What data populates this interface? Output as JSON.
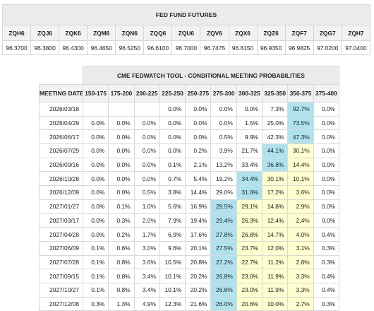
{
  "futures": {
    "title": "FED FUND FUTURES",
    "contracts": [
      "ZQH6",
      "ZQJ6",
      "ZQK6",
      "ZQM6",
      "ZQN6",
      "ZQQ6",
      "ZQU6",
      "ZQV6",
      "ZQX6",
      "ZQZ6",
      "ZQF7",
      "ZQG7",
      "ZQH7"
    ],
    "prices": [
      "96.3700",
      "96.3800",
      "96.4300",
      "96.4650",
      "96.5250",
      "96.6100",
      "96.7000",
      "96.7475",
      "96.8150",
      "96.9350",
      "96.9825",
      "97.0200",
      "97.0400"
    ]
  },
  "probabilities": {
    "title": "CME FEDWATCH TOOL - CONDITIONAL MEETING PROBABILITIES",
    "date_header": "MEETING DATE",
    "ranges": [
      "150-175",
      "175-200",
      "200-225",
      "225-250",
      "250-275",
      "275-300",
      "300-325",
      "325-350",
      "350-375",
      "375-400"
    ],
    "rows": [
      {
        "date": "2026/03/18",
        "values": [
          "",
          "",
          "",
          "0.0%",
          "0.0%",
          "0.0%",
          "0.0%",
          "7.3%",
          "92.7%",
          "0.0%"
        ]
      },
      {
        "date": "2026/04/29",
        "values": [
          "0.0%",
          "0.0%",
          "0.0%",
          "0.0%",
          "0.0%",
          "0.0%",
          "1.5%",
          "25.0%",
          "73.5%",
          "0.0%"
        ]
      },
      {
        "date": "2026/06/17",
        "values": [
          "0.0%",
          "0.0%",
          "0.0%",
          "0.0%",
          "0.0%",
          "0.5%",
          "9.9%",
          "42.3%",
          "47.3%",
          "0.0%"
        ]
      },
      {
        "date": "2026/07/29",
        "values": [
          "0.0%",
          "0.0%",
          "0.0%",
          "0.0%",
          "0.2%",
          "3.9%",
          "21.7%",
          "44.1%",
          "30.1%",
          "0.0%"
        ]
      },
      {
        "date": "2026/09/16",
        "values": [
          "0.0%",
          "0.0%",
          "0.0%",
          "0.1%",
          "2.1%",
          "13.2%",
          "33.4%",
          "36.8%",
          "14.4%",
          "0.0%"
        ]
      },
      {
        "date": "2026/10/28",
        "values": [
          "0.0%",
          "0.0%",
          "0.0%",
          "0.7%",
          "5.4%",
          "19.2%",
          "34.4%",
          "30.1%",
          "10.1%",
          "0.0%"
        ]
      },
      {
        "date": "2026/12/09",
        "values": [
          "0.0%",
          "0.0%",
          "0.5%",
          "3.8%",
          "14.4%",
          "29.0%",
          "31.6%",
          "17.2%",
          "3.6%",
          "0.0%"
        ]
      },
      {
        "date": "2027/01/27",
        "values": [
          "0.0%",
          "0.1%",
          "1.0%",
          "5.6%",
          "16.9%",
          "29.5%",
          "29.1%",
          "14.8%",
          "2.9%",
          "0.0%"
        ]
      },
      {
        "date": "2027/03/17",
        "values": [
          "0.0%",
          "0.3%",
          "2.0%",
          "7.9%",
          "19.4%",
          "29.4%",
          "26.3%",
          "12.4%",
          "2.4%",
          "0.0%"
        ]
      },
      {
        "date": "2027/04/28",
        "values": [
          "0.0%",
          "0.2%",
          "1.7%",
          "6.9%",
          "17.6%",
          "27.8%",
          "26.8%",
          "14.7%",
          "4.0%",
          "0.4%"
        ]
      },
      {
        "date": "2027/06/09",
        "values": [
          "0.1%",
          "0.6%",
          "3.0%",
          "9.6%",
          "20.1%",
          "27.5%",
          "23.7%",
          "12.0%",
          "3.1%",
          "0.3%"
        ]
      },
      {
        "date": "2027/07/28",
        "values": [
          "0.1%",
          "0.8%",
          "3.6%",
          "10.5%",
          "20.8%",
          "27.2%",
          "22.7%",
          "11.2%",
          "2.8%",
          "0.3%"
        ]
      },
      {
        "date": "2027/09/15",
        "values": [
          "0.1%",
          "0.8%",
          "3.4%",
          "10.1%",
          "20.2%",
          "26.8%",
          "23.0%",
          "11.9%",
          "3.3%",
          "0.4%"
        ]
      },
      {
        "date": "2027/10/27",
        "values": [
          "0.1%",
          "0.8%",
          "3.4%",
          "10.1%",
          "20.2%",
          "26.8%",
          "23.0%",
          "11.9%",
          "3.3%",
          "0.4%"
        ]
      },
      {
        "date": "2027/12/08",
        "values": [
          "0.3%",
          "1.3%",
          "4.9%",
          "12.3%",
          "21.6%",
          "26.0%",
          "20.6%",
          "10.0%",
          "2.7%",
          "0.3%"
        ]
      }
    ],
    "highlights": [
      {
        "row": 0,
        "col": 8,
        "color": "#aee3ed"
      },
      {
        "row": 1,
        "col": 8,
        "color": "#aee3ed"
      },
      {
        "row": 2,
        "col": 8,
        "color": "#aee3ed"
      },
      {
        "row": 3,
        "col": 7,
        "color": "#aee3ed"
      },
      {
        "row": 3,
        "col": 8,
        "color": "#fefecf"
      },
      {
        "row": 4,
        "col": 7,
        "color": "#aee3ed"
      },
      {
        "row": 4,
        "col": 8,
        "color": "#fefecf"
      },
      {
        "row": 5,
        "col": 6,
        "color": "#aee3ed"
      },
      {
        "row": 5,
        "col": 7,
        "color": "#fefecf"
      },
      {
        "row": 5,
        "col": 8,
        "color": "#fefecf"
      },
      {
        "row": 6,
        "col": 6,
        "color": "#aee3ed"
      },
      {
        "row": 6,
        "col": 7,
        "color": "#fefecf"
      },
      {
        "row": 6,
        "col": 8,
        "color": "#fefecf"
      },
      {
        "row": 7,
        "col": 5,
        "color": "#aee3ed"
      },
      {
        "row": 7,
        "col": 6,
        "color": "#fefecf"
      },
      {
        "row": 7,
        "col": 7,
        "color": "#fefecf"
      },
      {
        "row": 7,
        "col": 8,
        "color": "#fefecf"
      },
      {
        "row": 8,
        "col": 5,
        "color": "#aee3ed"
      },
      {
        "row": 8,
        "col": 6,
        "color": "#fefecf"
      },
      {
        "row": 8,
        "col": 7,
        "color": "#fefecf"
      },
      {
        "row": 8,
        "col": 8,
        "color": "#fefecf"
      },
      {
        "row": 9,
        "col": 5,
        "color": "#aee3ed"
      },
      {
        "row": 9,
        "col": 6,
        "color": "#fefecf"
      },
      {
        "row": 9,
        "col": 7,
        "color": "#fefecf"
      },
      {
        "row": 9,
        "col": 8,
        "color": "#fefecf"
      },
      {
        "row": 10,
        "col": 5,
        "color": "#aee3ed"
      },
      {
        "row": 10,
        "col": 6,
        "color": "#fefecf"
      },
      {
        "row": 10,
        "col": 7,
        "color": "#fefecf"
      },
      {
        "row": 10,
        "col": 8,
        "color": "#fefecf"
      },
      {
        "row": 11,
        "col": 5,
        "color": "#aee3ed"
      },
      {
        "row": 11,
        "col": 6,
        "color": "#fefecf"
      },
      {
        "row": 11,
        "col": 7,
        "color": "#fefecf"
      },
      {
        "row": 11,
        "col": 8,
        "color": "#fefecf"
      },
      {
        "row": 12,
        "col": 5,
        "color": "#aee3ed"
      },
      {
        "row": 12,
        "col": 6,
        "color": "#fefecf"
      },
      {
        "row": 12,
        "col": 7,
        "color": "#fefecf"
      },
      {
        "row": 12,
        "col": 8,
        "color": "#fefecf"
      },
      {
        "row": 13,
        "col": 5,
        "color": "#aee3ed"
      },
      {
        "row": 13,
        "col": 6,
        "color": "#fefecf"
      },
      {
        "row": 13,
        "col": 7,
        "color": "#fefecf"
      },
      {
        "row": 13,
        "col": 8,
        "color": "#fefecf"
      },
      {
        "row": 14,
        "col": 5,
        "color": "#aee3ed"
      },
      {
        "row": 14,
        "col": 6,
        "color": "#fefecf"
      },
      {
        "row": 14,
        "col": 7,
        "color": "#fefecf"
      },
      {
        "row": 14,
        "col": 8,
        "color": "#fefecf"
      }
    ]
  }
}
